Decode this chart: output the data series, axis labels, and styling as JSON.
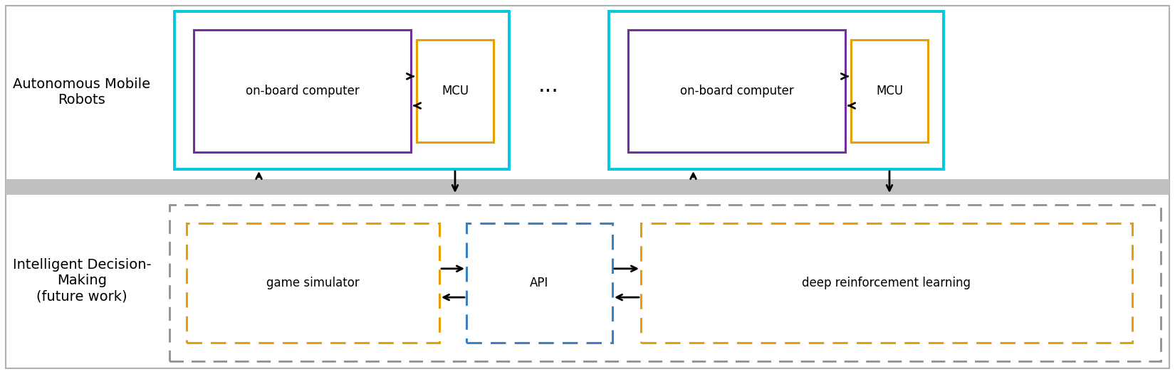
{
  "fig_width": 16.5,
  "fig_height": 5.26,
  "dpi": 100,
  "bg_color": "#ffffff",
  "border_color": "#b0b0b0",
  "gray_band_color": "#c0c0c0",
  "cyan_color": "#00c8e0",
  "purple_color": "#7030a0",
  "orange_color": "#e8a000",
  "blue_dash_color": "#3a80c8",
  "gray_dash_color": "#909090",
  "arrow_color": "#000000",
  "label_left_top": "Autonomous Mobile\nRobots",
  "label_left_bottom": "Intelligent Decision-\nMaking\n(future work)",
  "box1_label": "on-board computer",
  "box2_label": "MCU",
  "box3_label": "on-board computer",
  "box4_label": "MCU",
  "box5_label": "game simulator",
  "box6_label": "API",
  "box7_label": "deep reinforcement learning",
  "dots_label": "···"
}
